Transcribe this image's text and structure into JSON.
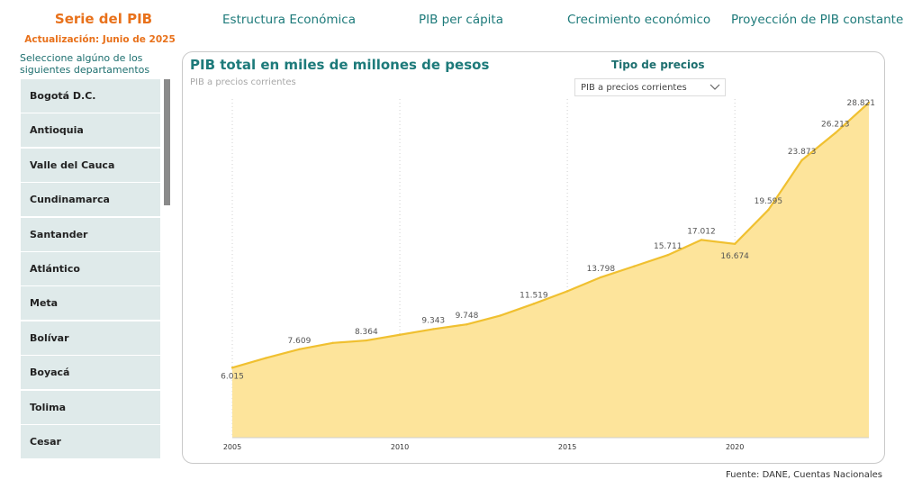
{
  "header": {
    "title": "Serie del PIB",
    "update": "Actualización: Junio de 2025",
    "tabs": [
      "Estructura Económica",
      "PIB per cápita",
      "Crecimiento económico",
      "Proyección de PIB constante"
    ]
  },
  "sidebar": {
    "heading": "Seleccione algúno de los siguientes departamentos",
    "items": [
      "Bogotá D.C.",
      "Antioquia",
      "Valle del Cauca",
      "Cundinamarca",
      "Santander",
      "Atlántico",
      "Meta",
      "Bolívar",
      "Boyacá",
      "Tolima",
      "Cesar"
    ]
  },
  "filter": {
    "label": "Tipo de precios",
    "selected": "PIB a precios corrientes"
  },
  "footer": {
    "source": "Fuente: DANE, Cuentas Nacionales"
  },
  "colors": {
    "accent": "#e8711b",
    "teal": "#1d7a7a",
    "line": "#f0c030",
    "area": "#fde49b"
  },
  "chart_data": {
    "type": "area",
    "title": "PIB total en miles de millones de pesos",
    "subtitle": "PIB a precios corrientes",
    "x": [
      2005,
      2006,
      2007,
      2008,
      2009,
      2010,
      2011,
      2012,
      2013,
      2014,
      2015,
      2016,
      2017,
      2018,
      2019,
      2020,
      2021,
      2022,
      2023,
      2024
    ],
    "values": [
      6015,
      6850,
      7609,
      8150,
      8364,
      8850,
      9343,
      9748,
      10500,
      11519,
      12600,
      13798,
      14750,
      15711,
      17012,
      16674,
      19595,
      23873,
      26213,
      28821
    ],
    "labels": [
      {
        "x": 2005,
        "text": "6.015"
      },
      {
        "x": 2007,
        "text": "7.609"
      },
      {
        "x": 2009,
        "text": "8.364"
      },
      {
        "x": 2011,
        "text": "9.343"
      },
      {
        "x": 2012,
        "text": "9.748"
      },
      {
        "x": 2014,
        "text": "11.519"
      },
      {
        "x": 2016,
        "text": "13.798"
      },
      {
        "x": 2018,
        "text": "15.711"
      },
      {
        "x": 2019,
        "text": "17.012"
      },
      {
        "x": 2020,
        "text": "16.674"
      },
      {
        "x": 2021,
        "text": "19.595"
      },
      {
        "x": 2022,
        "text": "23.873"
      },
      {
        "x": 2023,
        "text": "26.213"
      },
      {
        "x": 2024,
        "text": "28.821"
      }
    ],
    "xticks": [
      2005,
      2010,
      2015,
      2020
    ],
    "ylim": [
      0,
      28821
    ],
    "grid": "vertical-dotted"
  }
}
